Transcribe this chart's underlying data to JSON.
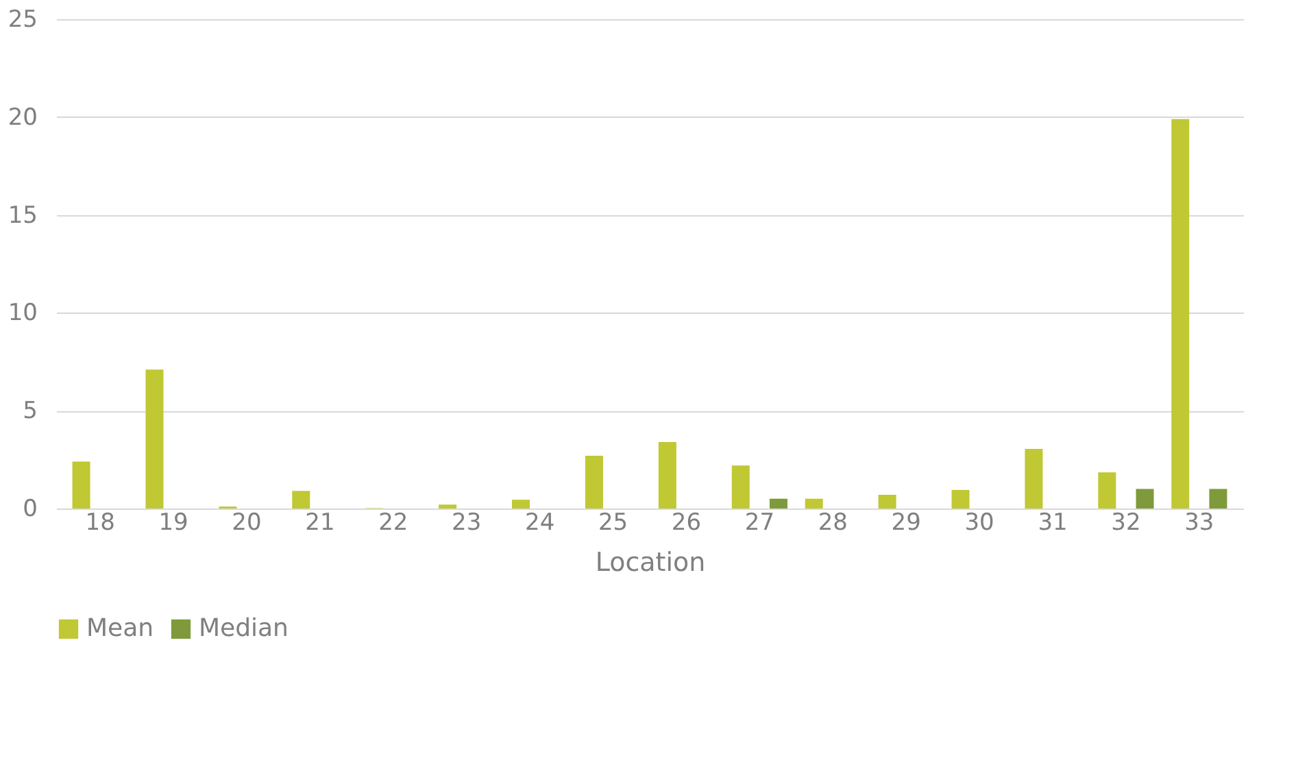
{
  "chart_data": {
    "type": "bar",
    "xlabel": "Location",
    "categories": [
      "18",
      "19",
      "20",
      "21",
      "22",
      "23",
      "24",
      "25",
      "26",
      "27",
      "28",
      "29",
      "30",
      "31",
      "32",
      "33"
    ],
    "series": [
      {
        "name": "Mean",
        "color": "#c0c833",
        "values": [
          2.4,
          7.1,
          0.1,
          0.9,
          0.02,
          0.2,
          0.45,
          2.7,
          3.4,
          2.2,
          0.5,
          0.7,
          0.95,
          3.05,
          1.85,
          19.9
        ]
      },
      {
        "name": "Median",
        "color": "#7f9a3a",
        "values": [
          0,
          0,
          0,
          0,
          0,
          0,
          0,
          0,
          0,
          0.5,
          0,
          0,
          0,
          0,
          1,
          1
        ]
      }
    ],
    "ylim": [
      0,
      25
    ],
    "yticks": [
      0,
      5,
      10,
      15,
      20,
      25
    ],
    "grid": "y",
    "legend": "bottom"
  }
}
